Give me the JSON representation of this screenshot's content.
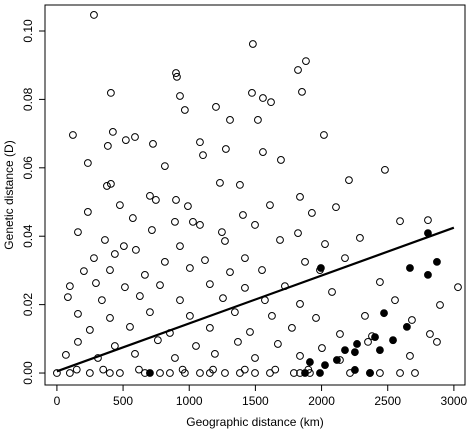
{
  "chart_data": {
    "type": "scatter",
    "x_label": "Geographic distance (km)",
    "y_label": "Genetic distance (D)",
    "xlim": [
      -90,
      3084
    ],
    "ylim": [
      -0.0035,
      0.1076
    ],
    "xticks": [
      0,
      500,
      1000,
      1500,
      2000,
      2500,
      3000
    ],
    "yticks": [
      {
        "value": 0,
        "label": "0.00"
      },
      {
        "value": 0.02,
        "label": "0.02"
      },
      {
        "value": 0.04,
        "label": "0.04"
      },
      {
        "value": 0.06,
        "label": "0.06"
      },
      {
        "value": 0.08,
        "label": "0.08"
      },
      {
        "value": 0.1,
        "label": "0.10"
      }
    ],
    "series": [
      {
        "color": "#000000",
        "filled": false,
        "x": [
          280,
          1481,
          1882,
          1822,
          900,
          907,
          408,
          930,
          1557,
          1618,
          1202,
          1474,
          1852,
          1519,
          967,
          1308,
          423,
          121,
          2018,
          521,
          590,
          385,
          726,
          1081,
          1277,
          1557,
          234,
          1104,
          816,
          1693,
          2479,
          2207,
          378,
          408,
          1232,
          1383,
          703,
          748,
          476,
          234,
          900,
          990,
          1610,
          1837,
          1927,
          2109,
          1406,
          574,
          892,
          1028,
          2804,
          2593,
          159,
          363,
          718,
          1081,
          1247,
          1497,
          1822,
          2290,
          506,
          597,
          930,
          1270,
          1686,
          2026,
          280,
          438,
          816,
          1119,
          1421,
          1875,
          2177,
          204,
          401,
          665,
          1005,
          1308,
          1550,
          1988,
          2441,
          98,
          295,
          514,
          779,
          1156,
          1421,
          1723,
          2079,
          3031,
          83,
          340,
          627,
          930,
          1255,
          1572,
          1837,
          2555,
          2895,
          159,
          401,
          703,
          1005,
          1345,
          1625,
          1958,
          2328,
          2683,
          249,
          552,
          854,
          1156,
          1459,
          1776,
          2139,
          2381,
          2819,
          159,
          438,
          763,
          1051,
          1368,
          1670,
          2003,
          2351,
          2872,
          68,
          310,
          590,
          892,
          1194,
          1497,
          1837,
          2139,
          2668,
          0,
          98,
          249,
          400,
          476,
          665,
          779,
          854,
          967,
          1081,
          1156,
          1270,
          1383,
          1497,
          1610,
          1791,
          1837,
          1912,
          2215,
          2366,
          2441,
          2593,
          2706,
          150,
          350,
          620,
          950,
          1180,
          1420,
          1650,
          1900
        ],
        "values": [
          0.1047,
          0.0962,
          0.0912,
          0.0886,
          0.0877,
          0.0866,
          0.0819,
          0.081,
          0.0804,
          0.0792,
          0.0778,
          0.0819,
          0.0822,
          0.074,
          0.0769,
          0.074,
          0.0705,
          0.0696,
          0.0696,
          0.0681,
          0.069,
          0.0664,
          0.067,
          0.0675,
          0.0655,
          0.0646,
          0.0614,
          0.0637,
          0.0605,
          0.0623,
          0.0594,
          0.0564,
          0.0547,
          0.0553,
          0.0556,
          0.055,
          0.0518,
          0.0506,
          0.0491,
          0.0471,
          0.0506,
          0.0488,
          0.0491,
          0.0515,
          0.0468,
          0.0485,
          0.0462,
          0.0453,
          0.0442,
          0.0442,
          0.0447,
          0.0444,
          0.0412,
          0.0389,
          0.0418,
          0.0433,
          0.0412,
          0.0433,
          0.0409,
          0.0395,
          0.0371,
          0.036,
          0.0371,
          0.0386,
          0.0389,
          0.0377,
          0.0336,
          0.0348,
          0.0325,
          0.033,
          0.0336,
          0.0325,
          0.0336,
          0.0298,
          0.0301,
          0.0287,
          0.0307,
          0.0295,
          0.0301,
          0.0301,
          0.0266,
          0.0254,
          0.0263,
          0.0251,
          0.0257,
          0.026,
          0.0249,
          0.0254,
          0.0237,
          0.0251,
          0.0222,
          0.0213,
          0.0225,
          0.0213,
          0.0219,
          0.0213,
          0.0202,
          0.0213,
          0.0199,
          0.0173,
          0.0161,
          0.0178,
          0.0167,
          0.0178,
          0.0167,
          0.0161,
          0.0167,
          0.0155,
          0.0126,
          0.0135,
          0.0117,
          0.0132,
          0.012,
          0.0132,
          0.0114,
          0.0108,
          0.0114,
          0.0091,
          0.0079,
          0.0096,
          0.0079,
          0.0091,
          0.0085,
          0.0073,
          0.0091,
          0.0091,
          0.0053,
          0.0044,
          0.0056,
          0.0044,
          0.0056,
          0.0044,
          0.005,
          0.0038,
          0.005,
          0,
          0,
          0,
          0,
          0,
          0,
          0,
          0,
          0,
          0,
          0,
          0,
          0,
          0,
          0,
          0,
          0,
          0,
          0,
          0,
          0,
          0,
          0,
          0.001,
          0.001,
          0.001,
          0.001,
          0.001,
          0.001,
          0.001,
          0.001
        ]
      },
      {
        "color": "#000000",
        "filled": true,
        "x": [
          2804,
          2668,
          2804,
          2872,
          2472,
          2645,
          2404,
          2540,
          1912,
          2252,
          2268,
          2177,
          2441,
          2116,
          2026,
          2252,
          1988,
          1875,
          2366,
          703,
          1995
        ],
        "values": [
          0.0409,
          0.0307,
          0.0287,
          0.0325,
          0.0175,
          0.0135,
          0.0105,
          0.0096,
          0.0032,
          0.0061,
          0.0085,
          0.0067,
          0.0067,
          0.0038,
          0.0023,
          0.0009,
          0,
          0,
          0,
          0,
          0.0307
        ]
      }
    ],
    "fit": {
      "x": [
        0,
        3000
      ],
      "values": [
        0.0005,
        0.0425
      ]
    }
  }
}
